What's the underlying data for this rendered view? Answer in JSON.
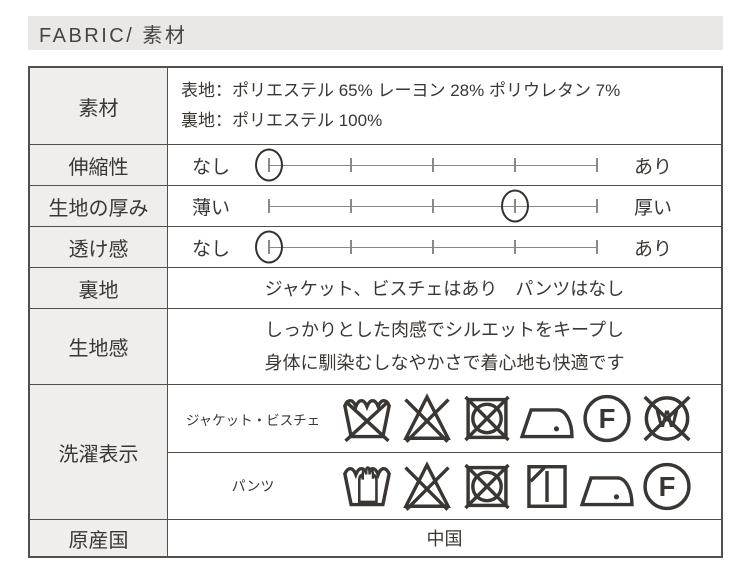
{
  "header": {
    "title": "FABRIC/ 素材"
  },
  "table": {
    "material": {
      "label": "素材",
      "lines": [
        "表地：ポリエステル 65% レーヨン 28% ポリウレタン 7%",
        "裏地：ポリエステル 100%"
      ]
    },
    "scales": [
      {
        "label": "伸縮性",
        "left": "なし",
        "right": "あり",
        "level": 1,
        "max": 5
      },
      {
        "label": "生地の厚み",
        "left": "薄い",
        "right": "厚い",
        "level": 4,
        "max": 5
      },
      {
        "label": "透け感",
        "left": "なし",
        "right": "あり",
        "level": 1,
        "max": 5
      }
    ],
    "lining": {
      "label": "裏地",
      "value": "ジャケット、ビスチェはあり　パンツはなし"
    },
    "texture": {
      "label": "生地感",
      "lines": [
        "しっかりとした肉感でシルエットをキープし",
        "身体に馴染むしなやかさで着心地も快適です"
      ]
    },
    "care": {
      "label": "洗濯表示",
      "groups": [
        {
          "name": "ジャケット・ビスチェ",
          "icons": [
            "do-not-wash",
            "do-not-bleach",
            "do-not-tumble-dry",
            "iron-low",
            "dry-clean-F",
            "do-not-wet-clean"
          ]
        },
        {
          "name": "パンツ",
          "icons": [
            "hand-wash",
            "do-not-bleach",
            "do-not-tumble-dry",
            "line-dry-shade",
            "iron-low",
            "dry-clean-F"
          ]
        }
      ]
    },
    "origin": {
      "label": "原産国",
      "value": "中国"
    }
  },
  "colors": {
    "text": "#3a3633",
    "border": "#514e4b",
    "label_bg": "#efeeec",
    "header_bg": "#e9e8e6",
    "scale_line": "#8b8885",
    "marker": "#34302e"
  }
}
